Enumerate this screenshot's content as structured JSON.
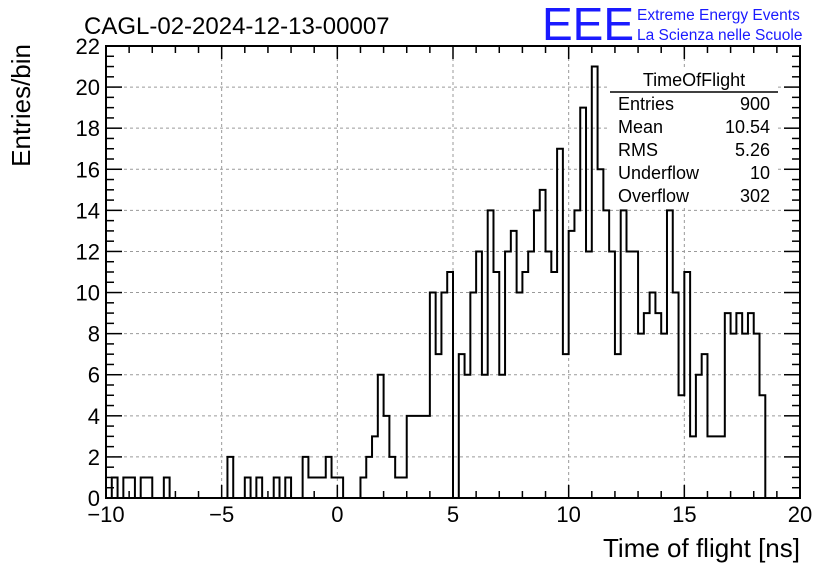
{
  "header": {
    "run_title": "CAGL-02-2024-12-13-00007",
    "logo_letters": "EEE",
    "logo_line1": "Extreme Energy Events",
    "logo_line2": "La Scienza nelle Scuole"
  },
  "stats_box": {
    "title": "TimeOfFlight",
    "rows": [
      {
        "label": "Entries",
        "value": "900"
      },
      {
        "label": "Mean",
        "value": "10.54"
      },
      {
        "label": "RMS",
        "value": "5.26"
      },
      {
        "label": "Underflow",
        "value": "10"
      },
      {
        "label": "Overflow",
        "value": "302"
      }
    ]
  },
  "colors": {
    "logo": "#1a1aff",
    "grid": "#9a9a9a",
    "line": "#000000"
  },
  "chart_data": {
    "type": "bar",
    "style": "step-histogram",
    "xlabel": "Time of flight [ns]",
    "ylabel": "Entries/bin",
    "xlim": [
      -10,
      20
    ],
    "ylim": [
      0,
      22
    ],
    "bin_width": 0.25,
    "grid": true,
    "x_ticks": [
      -10,
      -5,
      0,
      5,
      10,
      15,
      20
    ],
    "x_tick_labels": [
      "−10",
      "−5",
      "0",
      "5",
      "10",
      "15",
      "20"
    ],
    "y_ticks": [
      0,
      2,
      4,
      6,
      8,
      10,
      12,
      14,
      16,
      18,
      20,
      22
    ],
    "y_tick_labels": [
      "0",
      "2",
      "4",
      "6",
      "8",
      "10",
      "12",
      "14",
      "16",
      "18",
      "20",
      "22"
    ],
    "series": [
      {
        "values": [
          0,
          1,
          0,
          1,
          1,
          0,
          1,
          1,
          0,
          0,
          1,
          0,
          0,
          0,
          0,
          0,
          0,
          0,
          0,
          0,
          0,
          2,
          0,
          0,
          1,
          0,
          1,
          0,
          0,
          1,
          0,
          1,
          0,
          0,
          2,
          1,
          1,
          1,
          2,
          1,
          1,
          0,
          0,
          0,
          1,
          2,
          3,
          6,
          4,
          2,
          1,
          1,
          4,
          4,
          4,
          4,
          10,
          7,
          10,
          11,
          0,
          7,
          6,
          10,
          12,
          6,
          14,
          11,
          6,
          12,
          13,
          10,
          11,
          12,
          14,
          15,
          12,
          11,
          17,
          7,
          13,
          14,
          19,
          12,
          21,
          16,
          14,
          12,
          7,
          14,
          12,
          12,
          8,
          9,
          10,
          9,
          8,
          14,
          10,
          5,
          11,
          3,
          6,
          7,
          3,
          3,
          3,
          9,
          8,
          9,
          8,
          9,
          8,
          5
        ]
      }
    ]
  }
}
